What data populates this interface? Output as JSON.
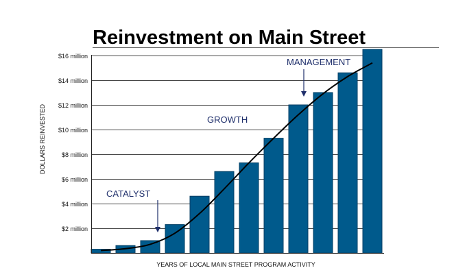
{
  "chart_data": {
    "type": "bar",
    "title": "Reinvestment on Main Street",
    "xlabel": "YEARS OF LOCAL MAIN STREET PROGRAM ACTIVITY",
    "ylabel": "DOLLARS REINVESTED",
    "ylim": [
      0,
      16.5
    ],
    "y_ticks": [
      {
        "value": 2,
        "label": "$2 million"
      },
      {
        "value": 4,
        "label": "$4 million"
      },
      {
        "value": 6,
        "label": "$6 million"
      },
      {
        "value": 8,
        "label": "$8 million"
      },
      {
        "value": 10,
        "label": "$10 million"
      },
      {
        "value": 12,
        "label": "$12 million"
      },
      {
        "value": 14,
        "label": "$14 million"
      },
      {
        "value": 16,
        "label": "$16 million"
      }
    ],
    "values": [
      0.3,
      0.6,
      1.0,
      2.3,
      4.6,
      6.6,
      7.3,
      9.3,
      12.0,
      13.0,
      14.6,
      16.5
    ],
    "trend_curve": [
      0.2,
      0.35,
      0.7,
      1.6,
      3.2,
      5.2,
      7.3,
      9.3,
      11.2,
      12.9,
      14.3,
      15.4
    ],
    "grid": true,
    "annotations": {
      "catalyst": "CATALYST",
      "growth": "GROWTH",
      "management": "MANAGEMENT"
    },
    "colors": {
      "bar": "#005a8c",
      "bar_edge": "#003d63",
      "trend": "#000000",
      "annotation_text": "#1f2f6b",
      "grid": "#444444",
      "axis": "#222222",
      "title_rule": "#666666"
    }
  }
}
